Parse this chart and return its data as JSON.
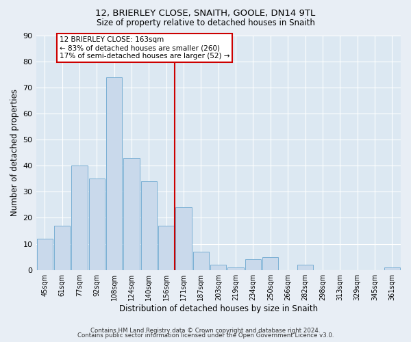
{
  "title": "12, BRIERLEY CLOSE, SNAITH, GOOLE, DN14 9TL",
  "subtitle": "Size of property relative to detached houses in Snaith",
  "xlabel": "Distribution of detached houses by size in Snaith",
  "ylabel": "Number of detached properties",
  "bin_labels": [
    "45sqm",
    "61sqm",
    "77sqm",
    "92sqm",
    "108sqm",
    "124sqm",
    "140sqm",
    "156sqm",
    "171sqm",
    "187sqm",
    "203sqm",
    "219sqm",
    "234sqm",
    "250sqm",
    "266sqm",
    "282sqm",
    "298sqm",
    "313sqm",
    "329sqm",
    "345sqm",
    "361sqm"
  ],
  "bar_values": [
    12,
    17,
    40,
    35,
    74,
    43,
    34,
    17,
    24,
    7,
    2,
    1,
    4,
    5,
    0,
    2,
    0,
    0,
    0,
    0,
    1
  ],
  "bar_color": "#c9d9eb",
  "bar_edge_color": "#7aafd4",
  "vline_x": 7.5,
  "vline_color": "#cc0000",
  "ylim": [
    0,
    90
  ],
  "yticks": [
    0,
    10,
    20,
    30,
    40,
    50,
    60,
    70,
    80,
    90
  ],
  "annotation_title": "12 BRIERLEY CLOSE: 163sqm",
  "annotation_line1": "← 83% of detached houses are smaller (260)",
  "annotation_line2": "17% of semi-detached houses are larger (52) →",
  "annotation_box_color": "#cc0000",
  "footer1": "Contains HM Land Registry data © Crown copyright and database right 2024.",
  "footer2": "Contains public sector information licensed under the Open Government Licence v3.0.",
  "bg_color": "#e8eef5",
  "plot_bg_color": "#dce8f2"
}
